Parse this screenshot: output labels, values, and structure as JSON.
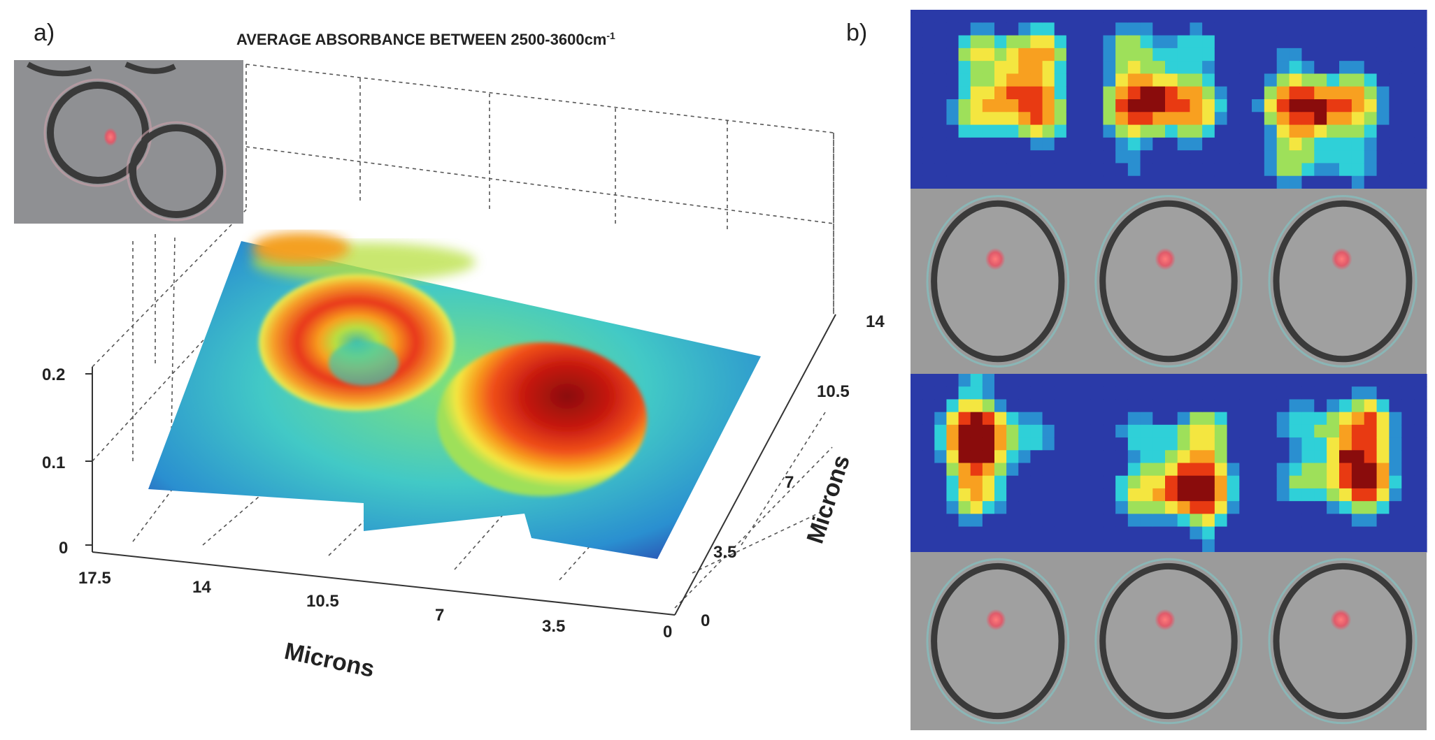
{
  "panel_a": {
    "label": "a)",
    "title": "AVERAGE ABSORBANCE BETWEEN 2500-3600cm",
    "title_superscript": "-1",
    "chart_data": {
      "type": "surface",
      "title": "AVERAGE ABSORBANCE BETWEEN 2500-3600cm-1",
      "z_ticks": [
        "0",
        "0.1",
        "0.2"
      ],
      "x_ticks": [
        "17.5",
        "14",
        "10.5",
        "7",
        "3.5",
        "0"
      ],
      "y_ticks": [
        "0",
        "3.5",
        "7",
        "10.5",
        "14"
      ],
      "xlabel": "Microns",
      "ylabel": "Microns",
      "zlim": [
        0,
        0.2
      ],
      "xlim": [
        0,
        17.5
      ],
      "ylim": [
        0,
        14
      ]
    }
  },
  "panel_b": {
    "label": "b)",
    "rows": 4,
    "cols": 3
  },
  "colors": {
    "low": "#2a3aa8",
    "mid": "#2fd0d8",
    "high": "#e83a12",
    "peak": "#8a0c0c",
    "cell_gray": "#9b9b9b"
  }
}
